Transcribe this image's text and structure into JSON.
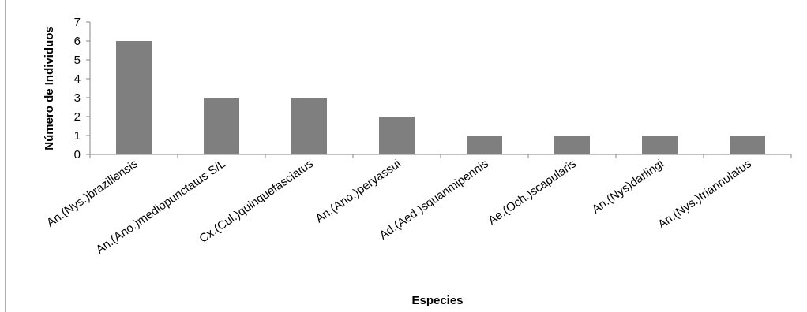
{
  "chart_data": {
    "type": "bar",
    "categories": [
      "An.(Nys.)braziliensis",
      "An.(Ano.)mediopunctatus S/L",
      "Cx.(Cul.)quinquefasciatus",
      "An.(Ano.)peryassui",
      "Ad.(Aed.)squanmipennis",
      "Ae.(Och.)scapularis",
      "An.(Nys)darlingi",
      "An.(Nys.)triannulatus"
    ],
    "values": [
      6,
      3,
      3,
      2,
      1,
      1,
      1,
      1
    ],
    "xlabel": "Especies",
    "ylabel": "Número de Individuos",
    "ylim": [
      0,
      7
    ],
    "yticks": [
      "0",
      "1",
      "2",
      "3",
      "4",
      "5",
      "6",
      "7"
    ],
    "grid": false,
    "legend": "none",
    "bar_color": "#7f7f7f",
    "axis_color": "#868686"
  }
}
